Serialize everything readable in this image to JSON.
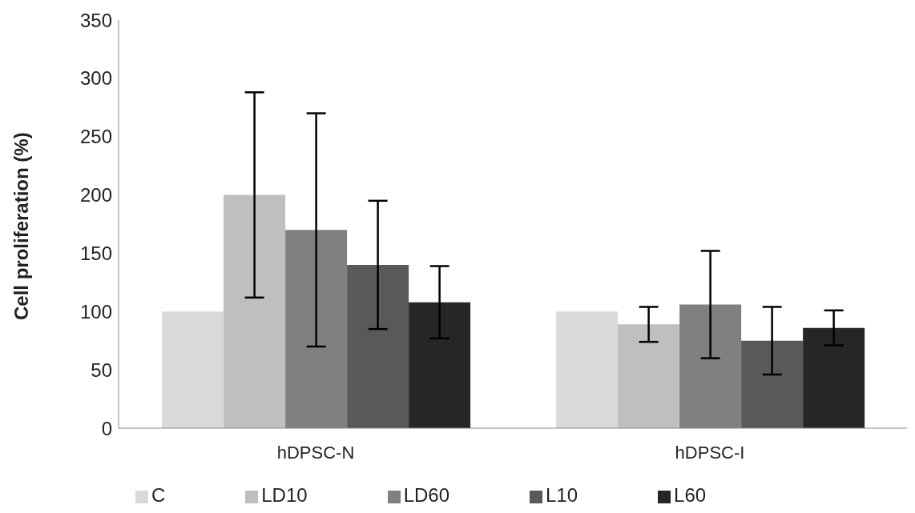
{
  "chart_data": {
    "type": "bar",
    "ylabel": "Cell proliferation (%)",
    "categories": [
      "hDPSC-N",
      "hDPSC-I"
    ],
    "series": [
      {
        "name": "C",
        "color": "#d9d9d9",
        "values": [
          100,
          100
        ],
        "errors": [
          0,
          0
        ]
      },
      {
        "name": "LD10",
        "color": "#bfbfbf",
        "values": [
          200,
          89
        ],
        "errors": [
          88,
          15
        ]
      },
      {
        "name": "LD60",
        "color": "#808080",
        "values": [
          170,
          106
        ],
        "errors": [
          100,
          46
        ]
      },
      {
        "name": "L10",
        "color": "#595959",
        "values": [
          140,
          75
        ],
        "errors": [
          55,
          29
        ]
      },
      {
        "name": "L60",
        "color": "#262626",
        "values": [
          108,
          86
        ],
        "errors": [
          31,
          15
        ]
      }
    ],
    "ylim": [
      0,
      350
    ],
    "yticks": [
      0,
      50,
      100,
      150,
      200,
      250,
      300,
      350
    ],
    "legend": "bottom",
    "grid": false
  }
}
